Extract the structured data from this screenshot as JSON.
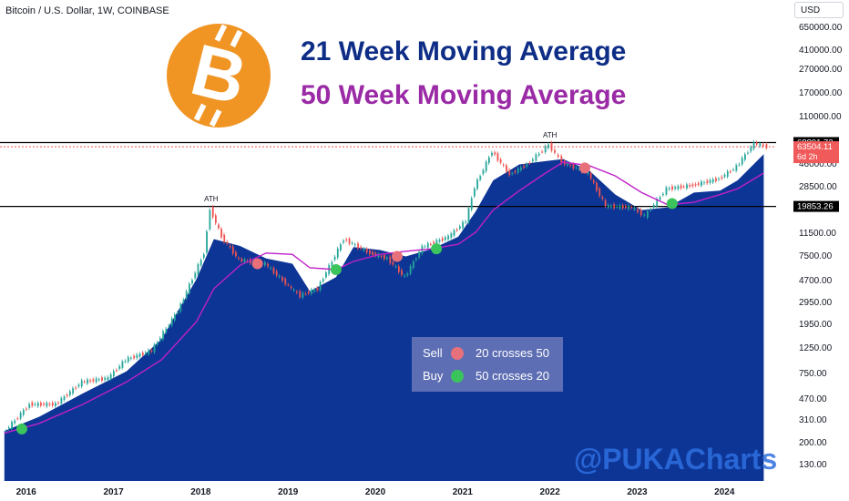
{
  "header": {
    "symbol_line": "Bitcoin / U.S. Dollar, 1W, COINBASE",
    "currency": "USD"
  },
  "titles": {
    "line1": "21 Week Moving Average",
    "line2": "50 Week Moving Average"
  },
  "watermark": "@PUKACharts",
  "colors": {
    "area": "#0d3596",
    "ma50": "#c020c8",
    "up": "#26a69a",
    "down": "#ef5350",
    "sell": "#e8707a",
    "buy": "#3cc45c",
    "btc_logo": "#f09424"
  },
  "legend": {
    "sell": {
      "label": "Sell",
      "text": "20 crosses 50"
    },
    "buy": {
      "label": "Buy",
      "text": "50 crosses 20"
    }
  },
  "chart_data": {
    "type": "line",
    "title": "",
    "xlabel": "",
    "ylabel": "",
    "y_scale": "log",
    "x_ticks": [
      "2016",
      "2017",
      "2018",
      "2019",
      "2020",
      "2021",
      "2022",
      "2023",
      "2024"
    ],
    "y_ticks": [
      "650000.00",
      "410000.00",
      "270000.00",
      "170000.00",
      "110000.00",
      "68891.73",
      "63504.11",
      "46000.00",
      "28500.00",
      "19853.26",
      "11500.00",
      "7500.00",
      "4700.00",
      "2950.00",
      "1950.00",
      "1250.00",
      "750.00",
      "470.00",
      "310.00",
      "200.00",
      "130.00"
    ],
    "price_labels": [
      {
        "value": "68891.73",
        "kind": "ath-line"
      },
      {
        "value": "63504.11",
        "kind": "last-price",
        "sub": "6d 2h"
      },
      {
        "value": "19853.26",
        "kind": "support-line"
      }
    ],
    "annotations": [
      "ATH",
      "ATH"
    ],
    "series": [
      {
        "name": "21 Week Moving Average",
        "x": [
          2015.6,
          2016.0,
          2016.5,
          2017.0,
          2017.4,
          2017.8,
          2018.0,
          2018.3,
          2018.6,
          2018.9,
          2019.1,
          2019.4,
          2019.6,
          2019.9,
          2020.2,
          2020.5,
          2020.8,
          2021.0,
          2021.2,
          2021.5,
          2021.8,
          2022.0,
          2022.3,
          2022.6,
          2022.9,
          2023.2,
          2023.5,
          2023.8,
          2024.0,
          2024.3
        ],
        "y": [
          250,
          330,
          520,
          800,
          1500,
          4800,
          10500,
          9200,
          7200,
          6500,
          3800,
          5000,
          9000,
          8500,
          7500,
          8700,
          11000,
          18000,
          33000,
          45000,
          48000,
          50000,
          40000,
          25000,
          18500,
          19500,
          26000,
          27000,
          33000,
          55000
        ]
      },
      {
        "name": "50 Week Moving Average",
        "x": [
          2015.6,
          2016.0,
          2016.5,
          2017.0,
          2017.4,
          2017.8,
          2018.0,
          2018.3,
          2018.6,
          2018.9,
          2019.1,
          2019.4,
          2019.6,
          2019.9,
          2020.2,
          2020.5,
          2020.8,
          2021.0,
          2021.2,
          2021.5,
          2021.8,
          2022.0,
          2022.3,
          2022.6,
          2022.9,
          2023.2,
          2023.5,
          2023.8,
          2024.0,
          2024.3
        ],
        "y": [
          240,
          290,
          420,
          650,
          1000,
          2100,
          4000,
          6300,
          8000,
          7800,
          6000,
          5800,
          6800,
          7800,
          8300,
          8700,
          9500,
          12000,
          18500,
          27000,
          38000,
          47000,
          44000,
          36000,
          26000,
          20500,
          21500,
          25000,
          28000,
          38000
        ]
      }
    ],
    "price": {
      "name": "BTC weekly close",
      "x": [
        2015.6,
        2015.9,
        2016.2,
        2016.5,
        2016.8,
        2017.0,
        2017.3,
        2017.6,
        2017.9,
        2017.97,
        2018.1,
        2018.3,
        2018.6,
        2018.9,
        2019.0,
        2019.2,
        2019.5,
        2019.8,
        2020.0,
        2020.2,
        2020.4,
        2020.7,
        2020.9,
        2021.0,
        2021.2,
        2021.4,
        2021.6,
        2021.85,
        2022.0,
        2022.3,
        2022.5,
        2022.8,
        2022.95,
        2023.2,
        2023.5,
        2023.8,
        2024.0,
        2024.2,
        2024.35
      ],
      "y": [
        240,
        420,
        420,
        650,
        700,
        1000,
        1200,
        2600,
        8000,
        19000,
        11000,
        7000,
        6500,
        4000,
        3500,
        4000,
        10500,
        8000,
        7200,
        5000,
        9000,
        11000,
        15000,
        29000,
        58000,
        37000,
        45000,
        66000,
        47000,
        38000,
        20000,
        19500,
        16500,
        28000,
        30000,
        34000,
        43000,
        68000,
        63504
      ]
    },
    "markers": {
      "sell": [
        {
          "x": 2018.5,
          "y": 6500
        },
        {
          "x": 2020.1,
          "y": 7500
        },
        {
          "x": 2022.25,
          "y": 42000
        }
      ],
      "buy": [
        {
          "x": 2015.8,
          "y": 260
        },
        {
          "x": 2019.4,
          "y": 5800
        },
        {
          "x": 2020.55,
          "y": 8700
        },
        {
          "x": 2023.25,
          "y": 21000
        }
      ]
    }
  }
}
